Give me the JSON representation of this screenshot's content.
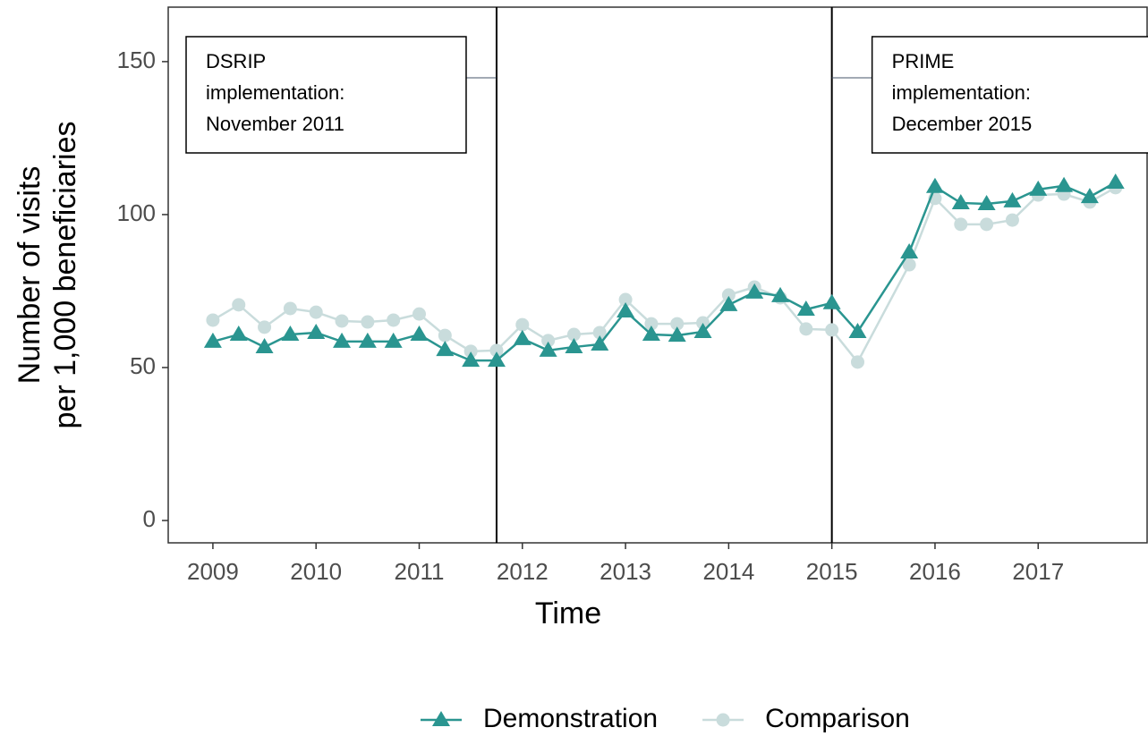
{
  "chart_data": {
    "type": "line",
    "xlabel": "Time",
    "ylabel": [
      "Number of visits",
      "per 1,000 beneficiaries"
    ],
    "x": [
      2009,
      2009.25,
      2009.5,
      2009.75,
      2010,
      2010.25,
      2010.5,
      2010.75,
      2011,
      2011.25,
      2011.5,
      2011.75,
      2012,
      2012.25,
      2012.5,
      2012.75,
      2013,
      2013.25,
      2013.5,
      2013.75,
      2014,
      2014.25,
      2014.5,
      2014.75,
      2015,
      2015.25,
      2015.75,
      2016,
      2016.25,
      2016.5,
      2016.75,
      2017,
      2017.25,
      2017.5,
      2017.75
    ],
    "series": [
      {
        "name": "Demonstration",
        "color": "#2a9590",
        "marker": "triangle",
        "values": [
          58.5,
          60.8,
          56.7,
          60.8,
          61.4,
          58.5,
          58.5,
          58.5,
          60.8,
          55.8,
          52.3,
          52.3,
          59.4,
          55.6,
          56.7,
          57.6,
          68.4,
          60.8,
          60.5,
          61.7,
          70.5,
          74.6,
          73.4,
          69.0,
          71.1,
          61.7,
          87.7,
          109.1,
          103.8,
          103.5,
          104.4,
          108.2,
          109.4,
          105.8,
          110.5
        ]
      },
      {
        "name": "Comparison",
        "color": "#c9dcdc",
        "marker": "circle",
        "values": [
          65.5,
          70.5,
          63.2,
          69.3,
          68.1,
          65.2,
          64.9,
          65.5,
          67.5,
          60.5,
          55.3,
          55.6,
          64.0,
          58.8,
          60.8,
          61.4,
          72.2,
          64.3,
          64.3,
          64.6,
          73.7,
          76.3,
          72.8,
          62.6,
          62.3,
          51.8,
          83.6,
          105.3,
          96.8,
          96.8,
          98.2,
          106.4,
          106.7,
          104.1,
          108.8
        ]
      }
    ],
    "xlim": [
      2008.567,
      2018.056
    ],
    "xticks": [
      2009,
      2010,
      2011,
      2012,
      2013,
      2014,
      2015,
      2016,
      2017
    ],
    "ylim": [
      -7.3,
      167.8
    ],
    "yticks": [
      0,
      50,
      100,
      150
    ],
    "vlines": [
      2011.75,
      2015
    ],
    "annotations": [
      {
        "lines": [
          "DSRIP",
          "implementation:",
          "November 2011"
        ]
      },
      {
        "lines": [
          "PRIME",
          "implementation:",
          "December 2015"
        ]
      }
    ],
    "legend": "bottom"
  }
}
